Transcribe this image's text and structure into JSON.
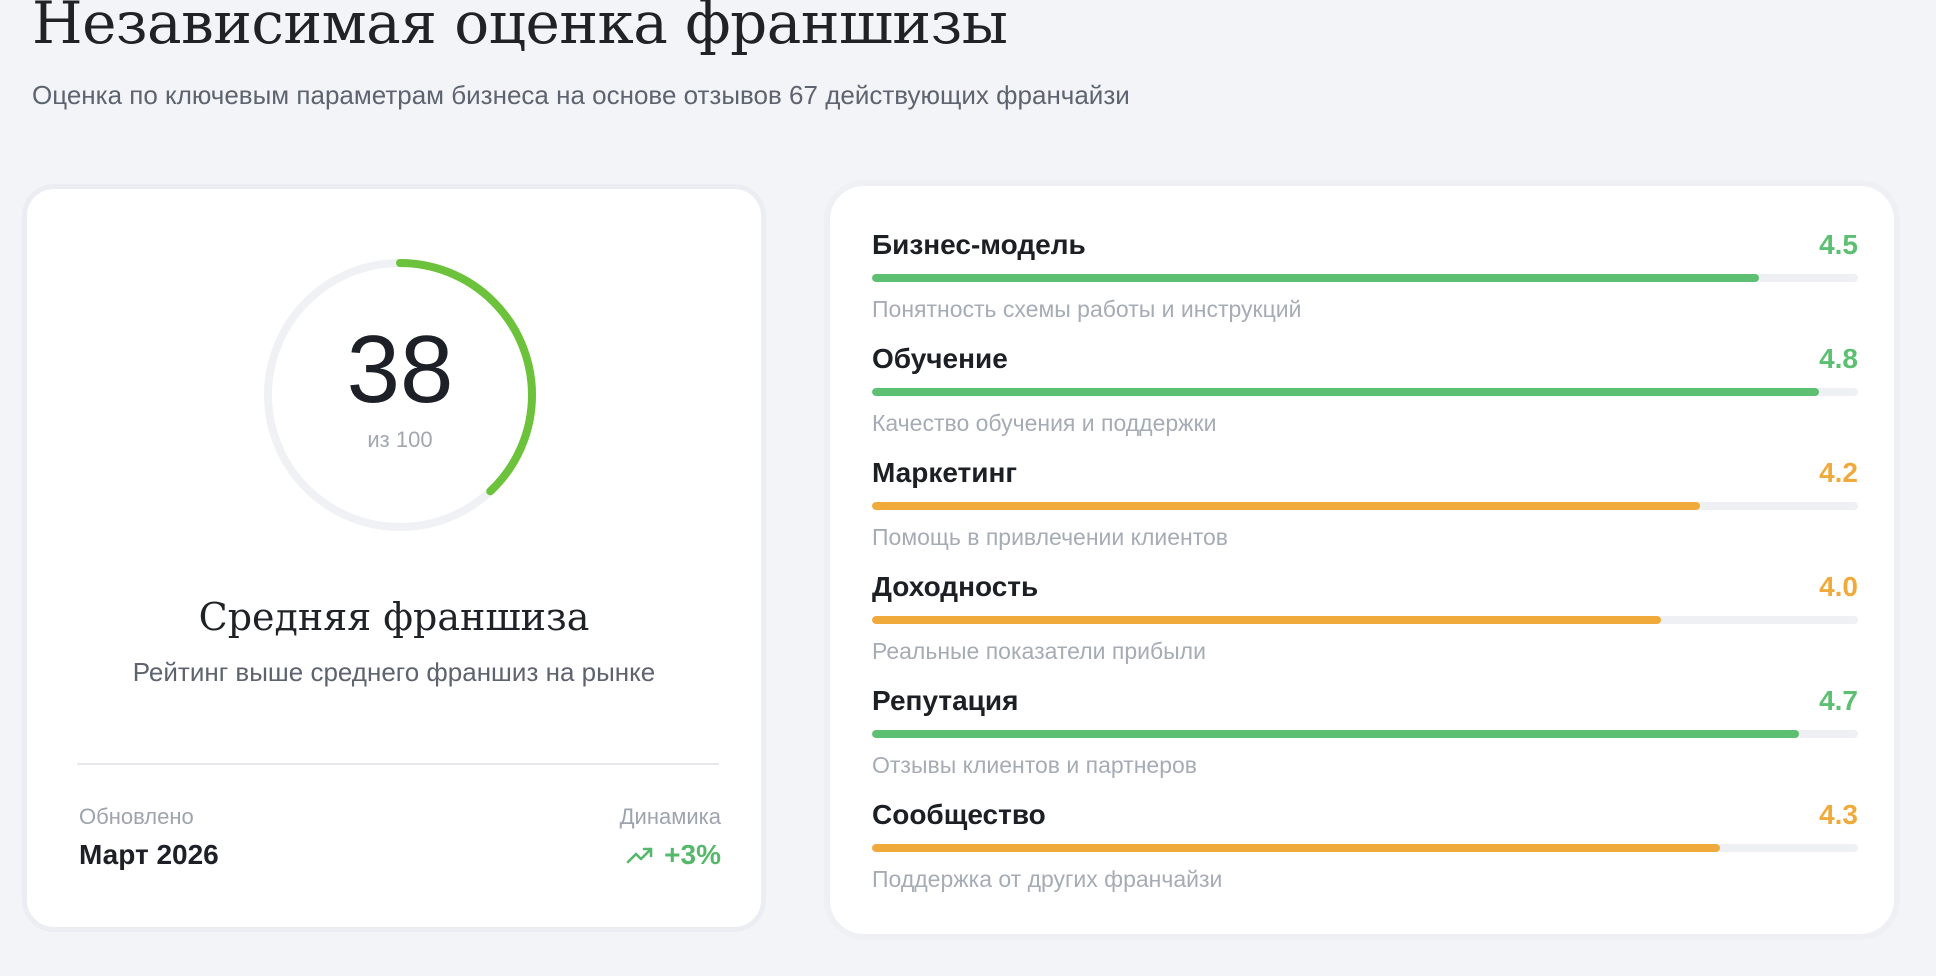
{
  "header": {
    "title": "Независимая оценка франшизы",
    "subtitle": "Оценка по ключевым параметрам бизнеса на основе отзывов 67 действующих франчайзи"
  },
  "summary": {
    "score": "38",
    "score_value": 38,
    "score_max_label": "из 100",
    "score_max": 100,
    "grade_title": "Средняя франшиза",
    "grade_description": "Рейтинг выше среднего франшиз на рынке",
    "updated_label": "Обновлено",
    "updated_value": "Март 2026",
    "dynamics_label": "Динамика",
    "dynamics_value": "+3%",
    "dynamics_icon": "trending-up-icon",
    "gauge_color": "#6cc23a",
    "gauge_track_color": "#eff1f4"
  },
  "metrics": {
    "max_score": 5,
    "colors": {
      "good": "#5dbf72",
      "medium": "#f0aa3c"
    },
    "items": [
      {
        "name": "Бизнес-модель",
        "score": "4.5",
        "value": 4.5,
        "description": "Понятность схемы работы и инструкций",
        "color": "#5dbf72"
      },
      {
        "name": "Обучение",
        "score": "4.8",
        "value": 4.8,
        "description": "Качество обучения и поддержки",
        "color": "#5dbf72"
      },
      {
        "name": "Маркетинг",
        "score": "4.2",
        "value": 4.2,
        "description": "Помощь в привлечении клиентов",
        "color": "#f0aa3c"
      },
      {
        "name": "Доходность",
        "score": "4.0",
        "value": 4.0,
        "description": "Реальные показатели прибыли",
        "color": "#f0aa3c"
      },
      {
        "name": "Репутация",
        "score": "4.7",
        "value": 4.7,
        "description": "Отзывы клиентов и партнеров",
        "color": "#5dbf72"
      },
      {
        "name": "Сообщество",
        "score": "4.3",
        "value": 4.3,
        "description": "Поддержка от других франчайзи",
        "color": "#f0aa3c"
      }
    ]
  }
}
